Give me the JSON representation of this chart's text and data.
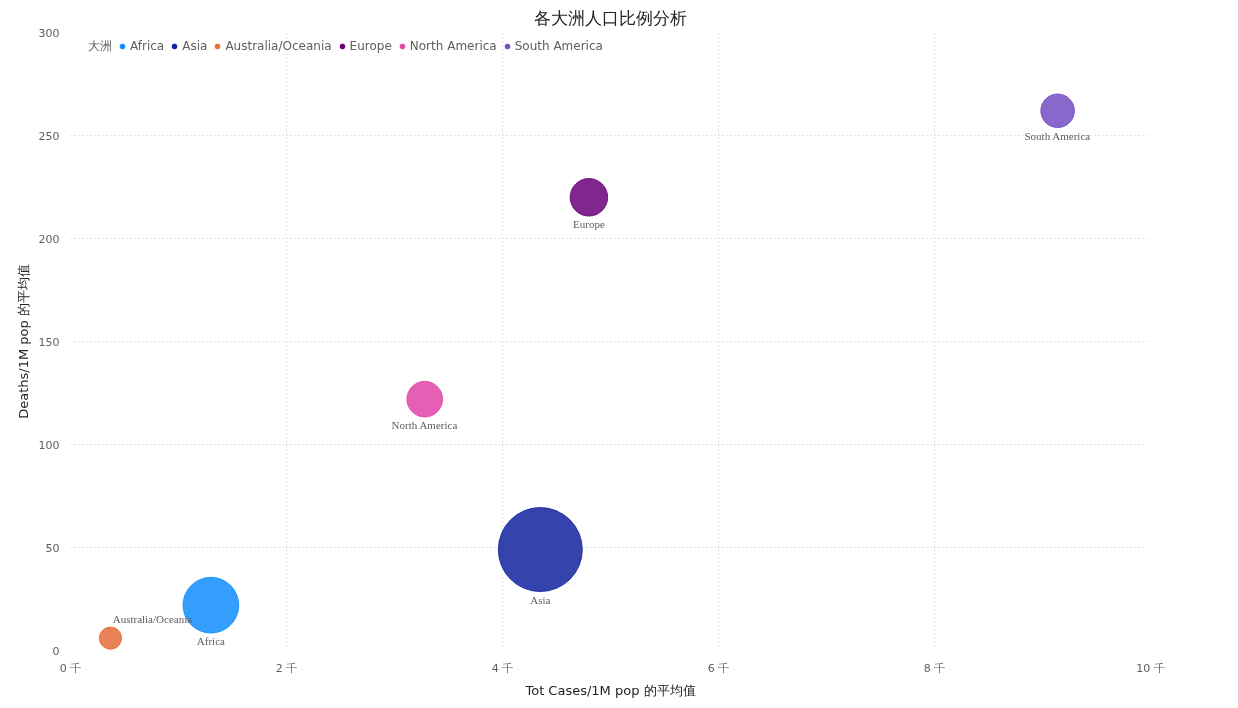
{
  "chart_data": {
    "type": "bubble",
    "title": "各大洲人口比例分析",
    "xlabel": "Tot Cases/1M pop 的平均值",
    "ylabel": "Deaths/1M pop 的平均值",
    "legend_title": "大洲",
    "series": [
      {
        "name": "Africa",
        "color": "#118dff",
        "x": [
          1.3
        ],
        "values": [
          22
        ],
        "sizes": [
          0.44
        ]
      },
      {
        "name": "Asia",
        "color": "#12239e",
        "x": [
          4.35
        ],
        "values": [
          49
        ],
        "sizes": [
          1
        ]
      },
      {
        "name": "Australia/Oceania",
        "color": "#e66c37",
        "x": [
          0.37
        ],
        "values": [
          6
        ],
        "sizes": [
          0.07
        ]
      },
      {
        "name": "Europe",
        "color": "#6b007b",
        "x": [
          4.8
        ],
        "values": [
          220
        ],
        "sizes": [
          0.2
        ]
      },
      {
        "name": "North America",
        "color": "#e044a7",
        "x": [
          3.28
        ],
        "values": [
          122
        ],
        "sizes": [
          0.18
        ]
      },
      {
        "name": "South America",
        "color": "#744ec2",
        "x": [
          9.14
        ],
        "values": [
          262
        ],
        "sizes": [
          0.16
        ]
      }
    ],
    "xlim": [
      0,
      10
    ],
    "xticks": [
      {
        "value": 0,
        "label": "0 千"
      },
      {
        "value": 2,
        "label": "2 千"
      },
      {
        "value": 4,
        "label": "4 千"
      },
      {
        "value": 6,
        "label": "6 千"
      },
      {
        "value": 8,
        "label": "8 千"
      },
      {
        "value": 10,
        "label": "10 千"
      }
    ],
    "ylim": [
      0,
      300
    ],
    "yticks": [
      0,
      50,
      100,
      150,
      200,
      250,
      300
    ],
    "grid": true,
    "legend": "top left",
    "marker": "circle"
  }
}
